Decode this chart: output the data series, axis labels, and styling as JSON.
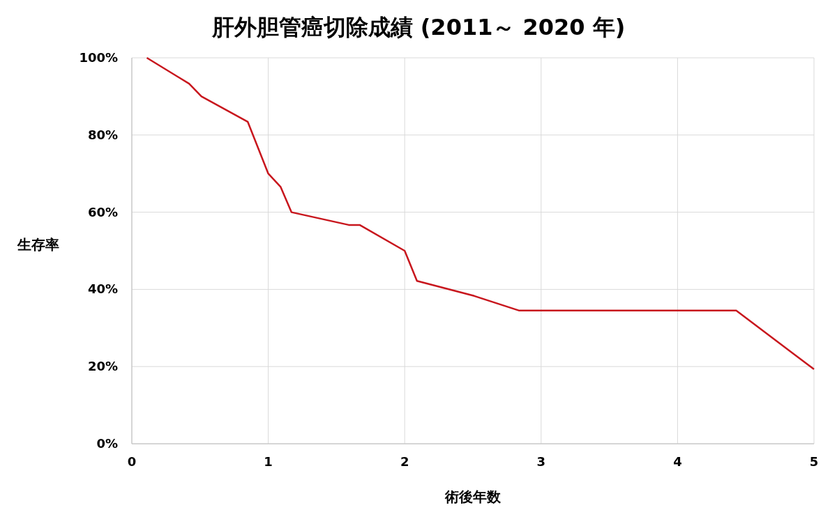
{
  "chart_data": {
    "type": "line",
    "title": "肝外胆管癌切除成績 (2011～ 2020 年)",
    "xlabel": "術後年数",
    "ylabel": "生存率",
    "x": [
      0.11,
      0.42,
      0.51,
      0.85,
      1.0,
      1.09,
      1.17,
      1.59,
      1.67,
      2.0,
      2.09,
      2.51,
      2.84,
      4.43,
      5.0
    ],
    "series": [
      {
        "color": "#c8161d",
        "values": [
          100,
          93.3,
          90,
          83.4,
          70,
          66.6,
          60,
          56.7,
          56.7,
          50,
          42.2,
          38.3,
          34.5,
          34.5,
          19.3
        ]
      }
    ],
    "xlim": [
      0,
      5
    ],
    "xticks": [
      0,
      1,
      2,
      3,
      4,
      5
    ],
    "ylim": [
      0,
      100
    ],
    "yticks": [
      {
        "value": 0,
        "label": "0%"
      },
      {
        "value": 20,
        "label": "20%"
      },
      {
        "value": 40,
        "label": "40%"
      },
      {
        "value": 60,
        "label": "60%"
      },
      {
        "value": 80,
        "label": "80%"
      },
      {
        "value": 100,
        "label": "100%"
      }
    ],
    "grid": true,
    "marker": "none",
    "line_style": "solid"
  }
}
